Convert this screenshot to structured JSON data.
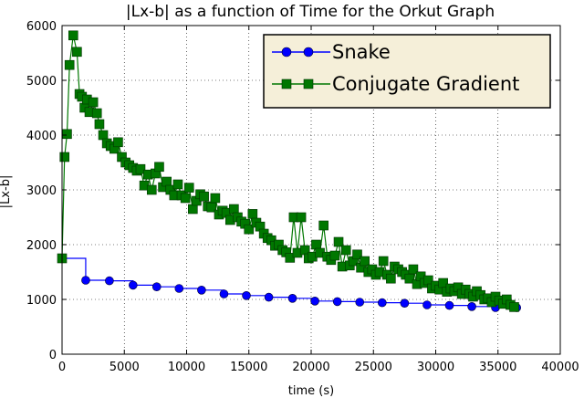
{
  "chart_data": {
    "type": "line",
    "title": "|Lx-b| as a function of Time for the Orkut Graph",
    "xlabel": "time (s)",
    "ylabel": "|Lx-b|",
    "xlim": [
      0,
      40000
    ],
    "ylim": [
      0,
      6000
    ],
    "x_ticks": [
      "0",
      "5000",
      "10000",
      "15000",
      "20000",
      "25000",
      "30000",
      "35000",
      "40000"
    ],
    "y_ticks": [
      "0",
      "1000",
      "2000",
      "3000",
      "4000",
      "5000",
      "6000"
    ],
    "grid": true,
    "legend_position": "top-right",
    "series": [
      {
        "name": "Snake",
        "color": "#0000ff",
        "marker": "circle",
        "step": true,
        "points": [
          [
            0,
            1750
          ],
          [
            1900,
            1350
          ],
          [
            3800,
            1340
          ],
          [
            5700,
            1260
          ],
          [
            7600,
            1230
          ],
          [
            9400,
            1200
          ],
          [
            11200,
            1170
          ],
          [
            13000,
            1100
          ],
          [
            14800,
            1070
          ],
          [
            16600,
            1040
          ],
          [
            18500,
            1020
          ],
          [
            20300,
            970
          ],
          [
            22100,
            960
          ],
          [
            23900,
            950
          ],
          [
            25700,
            940
          ],
          [
            27500,
            930
          ],
          [
            29300,
            900
          ],
          [
            31100,
            890
          ],
          [
            32900,
            870
          ],
          [
            34800,
            850
          ],
          [
            36500,
            850
          ]
        ]
      },
      {
        "name": "Conjugate Gradient",
        "color": "#007700",
        "marker": "square",
        "step": false,
        "points": [
          [
            0,
            1750
          ],
          [
            200,
            3600
          ],
          [
            400,
            4020
          ],
          [
            600,
            5280
          ],
          [
            900,
            5820
          ],
          [
            1200,
            5520
          ],
          [
            1400,
            4750
          ],
          [
            1600,
            4700
          ],
          [
            1800,
            4500
          ],
          [
            2000,
            4650
          ],
          [
            2200,
            4420
          ],
          [
            2500,
            4600
          ],
          [
            2800,
            4400
          ],
          [
            3000,
            4200
          ],
          [
            3300,
            4000
          ],
          [
            3600,
            3850
          ],
          [
            3900,
            3800
          ],
          [
            4200,
            3750
          ],
          [
            4500,
            3870
          ],
          [
            4800,
            3600
          ],
          [
            5100,
            3500
          ],
          [
            5400,
            3450
          ],
          [
            5700,
            3400
          ],
          [
            6000,
            3350
          ],
          [
            6300,
            3380
          ],
          [
            6600,
            3080
          ],
          [
            6900,
            3280
          ],
          [
            7200,
            3000
          ],
          [
            7500,
            3300
          ],
          [
            7800,
            3420
          ],
          [
            8100,
            3050
          ],
          [
            8400,
            3150
          ],
          [
            8700,
            3000
          ],
          [
            9000,
            2900
          ],
          [
            9300,
            3100
          ],
          [
            9600,
            2900
          ],
          [
            9900,
            2850
          ],
          [
            10200,
            3040
          ],
          [
            10500,
            2650
          ],
          [
            10800,
            2800
          ],
          [
            11100,
            2920
          ],
          [
            11400,
            2880
          ],
          [
            11700,
            2700
          ],
          [
            12000,
            2680
          ],
          [
            12300,
            2850
          ],
          [
            12600,
            2550
          ],
          [
            12900,
            2620
          ],
          [
            13200,
            2580
          ],
          [
            13500,
            2450
          ],
          [
            13800,
            2650
          ],
          [
            14100,
            2500
          ],
          [
            14400,
            2420
          ],
          [
            14700,
            2380
          ],
          [
            15000,
            2280
          ],
          [
            15300,
            2560
          ],
          [
            15600,
            2400
          ],
          [
            15900,
            2330
          ],
          [
            16200,
            2200
          ],
          [
            16500,
            2120
          ],
          [
            16800,
            2080
          ],
          [
            17100,
            1980
          ],
          [
            17400,
            2000
          ],
          [
            17700,
            1900
          ],
          [
            18000,
            1860
          ],
          [
            18300,
            1760
          ],
          [
            18600,
            2500
          ],
          [
            18900,
            1850
          ],
          [
            19200,
            2500
          ],
          [
            19500,
            1900
          ],
          [
            19800,
            1750
          ],
          [
            20100,
            1780
          ],
          [
            20400,
            2000
          ],
          [
            20700,
            1850
          ],
          [
            21000,
            2350
          ],
          [
            21300,
            1780
          ],
          [
            21600,
            1720
          ],
          [
            21900,
            1800
          ],
          [
            22200,
            2050
          ],
          [
            22500,
            1600
          ],
          [
            22800,
            1900
          ],
          [
            23100,
            1620
          ],
          [
            23400,
            1700
          ],
          [
            23700,
            1820
          ],
          [
            24000,
            1580
          ],
          [
            24300,
            1700
          ],
          [
            24600,
            1500
          ],
          [
            24900,
            1550
          ],
          [
            25200,
            1450
          ],
          [
            25500,
            1500
          ],
          [
            25800,
            1700
          ],
          [
            26100,
            1450
          ],
          [
            26400,
            1380
          ],
          [
            26700,
            1600
          ],
          [
            27000,
            1550
          ],
          [
            27300,
            1500
          ],
          [
            27600,
            1450
          ],
          [
            27900,
            1380
          ],
          [
            28200,
            1550
          ],
          [
            28500,
            1280
          ],
          [
            28800,
            1420
          ],
          [
            29100,
            1300
          ],
          [
            29400,
            1350
          ],
          [
            29700,
            1200
          ],
          [
            30000,
            1250
          ],
          [
            30300,
            1180
          ],
          [
            30600,
            1300
          ],
          [
            30900,
            1140
          ],
          [
            31200,
            1200
          ],
          [
            31500,
            1150
          ],
          [
            31800,
            1220
          ],
          [
            32100,
            1100
          ],
          [
            32400,
            1180
          ],
          [
            32700,
            1100
          ],
          [
            33000,
            1050
          ],
          [
            33300,
            1150
          ],
          [
            33600,
            1080
          ],
          [
            33900,
            1000
          ],
          [
            34200,
            1020
          ],
          [
            34500,
            950
          ],
          [
            34800,
            1050
          ],
          [
            35100,
            980
          ],
          [
            35400,
            920
          ],
          [
            35700,
            1000
          ],
          [
            36000,
            900
          ],
          [
            36300,
            860
          ]
        ]
      }
    ]
  }
}
